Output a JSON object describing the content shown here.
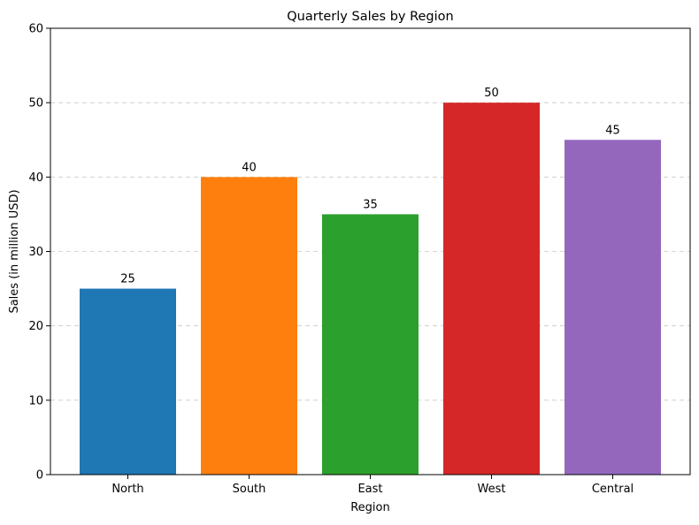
{
  "chart_data": {
    "type": "bar",
    "title": "Quarterly Sales by Region",
    "xlabel": "Region",
    "ylabel": "Sales (in million USD)",
    "categories": [
      "North",
      "South",
      "East",
      "West",
      "Central"
    ],
    "values": [
      25,
      40,
      35,
      50,
      45
    ],
    "colors": [
      "#1f77b4",
      "#ff7f0e",
      "#2ca02c",
      "#d62728",
      "#9467bd"
    ],
    "ylim": [
      0,
      60
    ],
    "yticks": [
      0,
      10,
      20,
      30,
      40,
      50,
      60
    ],
    "grid": "y-dashed",
    "legend": "none"
  }
}
